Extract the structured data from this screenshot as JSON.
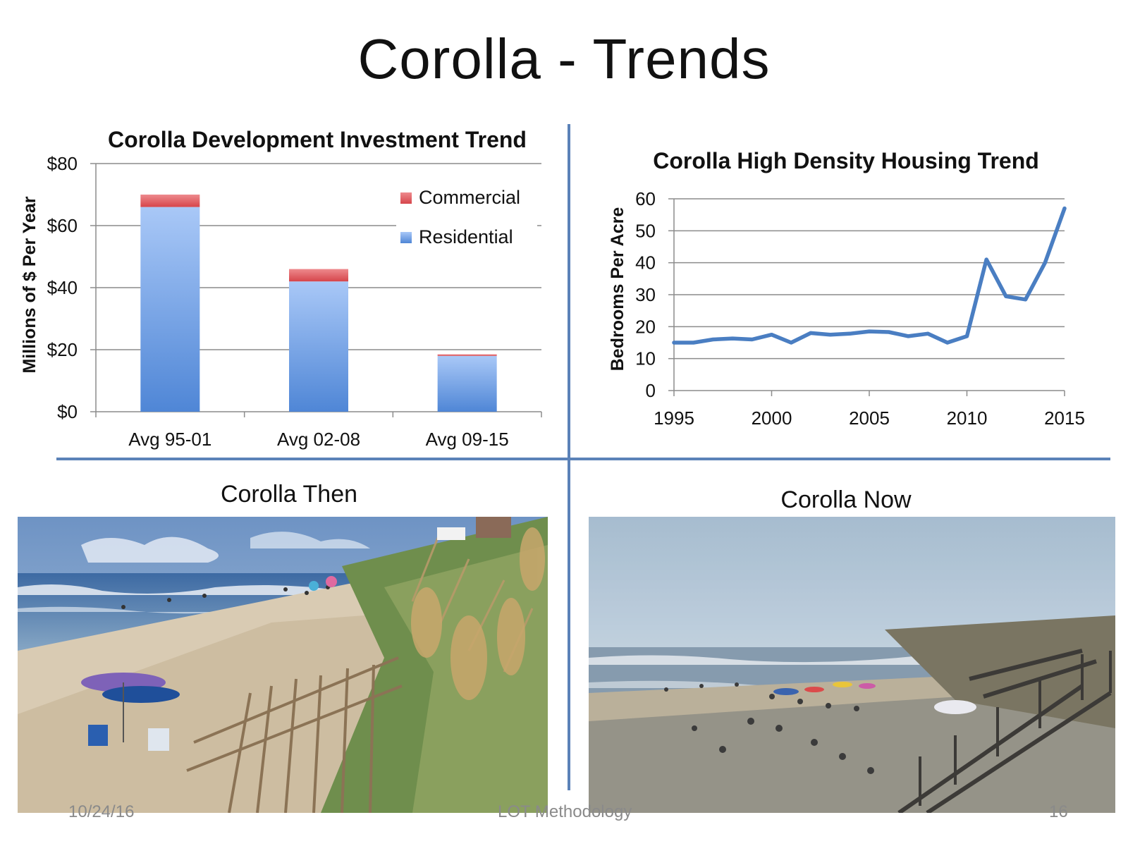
{
  "slide": {
    "title": "Corolla - Trends",
    "footer_date": "10/24/16",
    "footer_center": "LOT Methodology",
    "footer_page": "16"
  },
  "colors": {
    "residential": "#5b8fdb",
    "commercial": "#dc5a5f",
    "line": "#4a7ec2",
    "divider": "#5b82b8"
  },
  "photos": {
    "then_caption": "Corolla Then",
    "now_caption": "Corolla Now"
  },
  "chart_data": [
    {
      "type": "bar",
      "stacked": true,
      "title": "Corolla Development Investment Trend",
      "ylabel": "Millions of $ Per Year",
      "xlabel": "",
      "categories": [
        "Avg 95-01",
        "Avg 02-08",
        "Avg 09-15"
      ],
      "series": [
        {
          "name": "Residential",
          "values": [
            66,
            42,
            18
          ]
        },
        {
          "name": "Commercial",
          "values": [
            4,
            4,
            0.5
          ]
        }
      ],
      "ylim": [
        0,
        80
      ],
      "yticks": [
        0,
        20,
        40,
        60,
        80
      ],
      "ytick_labels": [
        "$0",
        "$20",
        "$40",
        "$60",
        "$80"
      ],
      "grid": true,
      "legend_position": "top-right",
      "legend_order": [
        "Commercial",
        "Residential"
      ]
    },
    {
      "type": "line",
      "title": "Corolla High Density Housing Trend",
      "ylabel": "Bedrooms Per Acre",
      "xlabel": "",
      "x": [
        1995,
        1996,
        1997,
        1998,
        1999,
        2000,
        2001,
        2002,
        2003,
        2004,
        2005,
        2006,
        2007,
        2008,
        2009,
        2010,
        2011,
        2012,
        2013,
        2014,
        2015
      ],
      "series": [
        {
          "values": [
            15,
            15,
            16,
            16.3,
            16,
            17.5,
            15,
            18,
            17.5,
            17.8,
            18.5,
            18.3,
            17,
            17.8,
            15,
            17,
            41,
            29.5,
            28.5,
            40,
            57
          ]
        }
      ],
      "xlim": [
        1995,
        2015
      ],
      "xticks": [
        1995,
        2000,
        2005,
        2010,
        2015
      ],
      "ylim": [
        0,
        60
      ],
      "yticks": [
        0,
        10,
        20,
        30,
        40,
        50,
        60
      ],
      "grid": true
    }
  ]
}
